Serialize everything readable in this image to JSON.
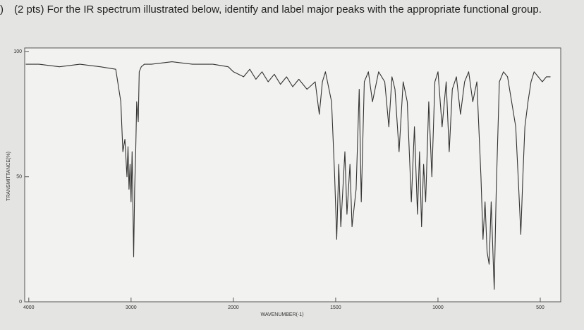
{
  "item_marker": ")",
  "chart_data": {
    "type": "line",
    "title": "(2 pts) For the IR spectrum illustrated below, identify and label major peaks with the appropriate functional group.",
    "xlabel": "WAVENUMBER(-1)",
    "ylabel": "TRANSMITTANCE(%)",
    "xlim": [
      4040,
      400
    ],
    "ylim": [
      0,
      100
    ],
    "xticks": [
      4000,
      3000,
      2000,
      1500,
      1000,
      500
    ],
    "yticks": [
      0,
      50,
      100
    ],
    "scale_change_at": 2000,
    "series": [
      {
        "name": "IR spectrum",
        "color": "#333333",
        "x": [
          4030,
          3900,
          3700,
          3500,
          3300,
          3150,
          3100,
          3080,
          3060,
          3040,
          3030,
          3020,
          3010,
          3000,
          2990,
          2975,
          2965,
          2955,
          2945,
          2930,
          2920,
          2900,
          2870,
          2800,
          2600,
          2400,
          2200,
          2050,
          2000,
          1950,
          1920,
          1890,
          1860,
          1830,
          1800,
          1770,
          1740,
          1710,
          1680,
          1640,
          1600,
          1580,
          1565,
          1550,
          1520,
          1505,
          1495,
          1485,
          1475,
          1465,
          1455,
          1445,
          1430,
          1420,
          1400,
          1385,
          1375,
          1360,
          1340,
          1320,
          1290,
          1260,
          1240,
          1225,
          1210,
          1190,
          1170,
          1150,
          1130,
          1115,
          1100,
          1090,
          1080,
          1070,
          1060,
          1045,
          1030,
          1015,
          1000,
          980,
          960,
          945,
          930,
          910,
          890,
          870,
          850,
          830,
          810,
          790,
          780,
          770,
          760,
          750,
          740,
          725,
          715,
          700,
          680,
          660,
          640,
          620,
          605,
          595,
          585,
          575,
          560,
          545,
          530,
          510,
          490,
          470,
          450
        ],
        "values": [
          95,
          95,
          94,
          95,
          94,
          93,
          80,
          60,
          65,
          50,
          62,
          45,
          55,
          40,
          60,
          18,
          45,
          60,
          80,
          72,
          92,
          94,
          95,
          95,
          96,
          95,
          95,
          94,
          92,
          90,
          93,
          89,
          92,
          88,
          91,
          87,
          90,
          86,
          89,
          85,
          88,
          75,
          88,
          92,
          80,
          50,
          25,
          55,
          30,
          45,
          60,
          35,
          55,
          30,
          45,
          85,
          40,
          88,
          92,
          80,
          92,
          88,
          70,
          90,
          85,
          60,
          88,
          80,
          40,
          70,
          35,
          60,
          30,
          55,
          40,
          80,
          50,
          88,
          92,
          70,
          88,
          60,
          85,
          90,
          75,
          88,
          92,
          80,
          88,
          50,
          25,
          40,
          20,
          15,
          40,
          5,
          45,
          88,
          92,
          90,
          80,
          70,
          45,
          27,
          50,
          70,
          80,
          88,
          92,
          90,
          88,
          90,
          90
        ]
      }
    ]
  }
}
